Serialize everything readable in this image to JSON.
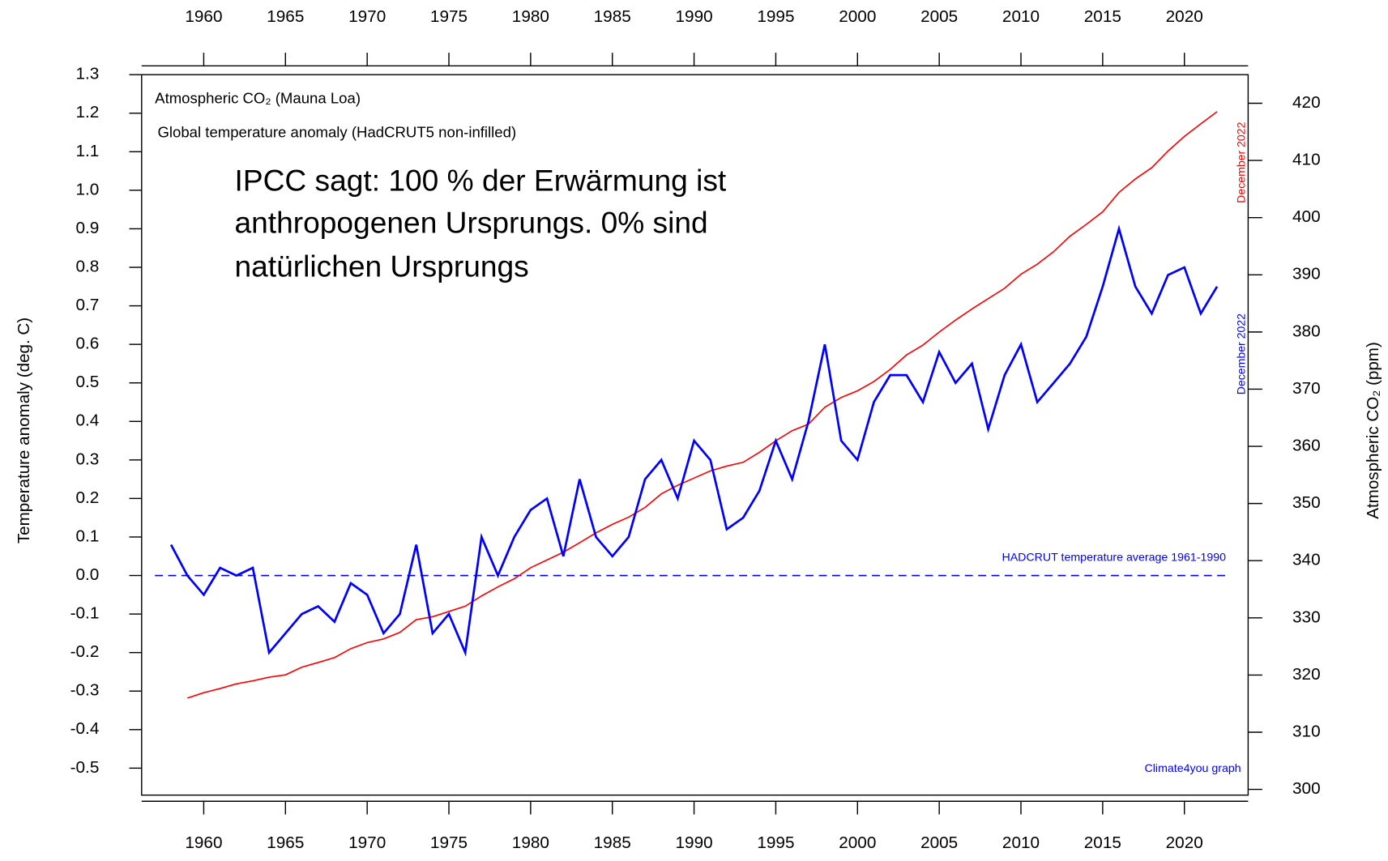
{
  "chart_data": {
    "type": "line",
    "legend": "upper left",
    "annotation": [
      "IPCC sagt: 100 % der Erwärmung ist",
      "anthropogenen Ursprungs. 0% sind",
      "natürlichen Ursprungs"
    ],
    "ylabel": "Temperature anomaly (deg. C)",
    "y2label": "Atmospheric CO₂ (ppm)",
    "credit": "Climate4you graph",
    "end_labels": [
      "December 2022",
      "December 2022"
    ],
    "baseline": {
      "value": 0,
      "label": "HADCRUT temperature average 1961-1990"
    },
    "xlim": [
      1956.2,
      2023.9
    ],
    "xticks": [
      1960,
      1965,
      1970,
      1975,
      1980,
      1985,
      1990,
      1995,
      2000,
      2005,
      2010,
      2015,
      2020
    ],
    "ylim": [
      -0.57,
      1.3
    ],
    "yticks": [
      -0.5,
      -0.4,
      -0.3,
      -0.2,
      -0.1,
      {
        "value": 0,
        "label": "0.0"
      },
      0.1,
      0.2,
      0.3,
      0.4,
      0.5,
      0.6,
      0.7,
      0.8,
      0.9,
      {
        "value": 1,
        "label": "1.0"
      },
      1.1,
      1.2,
      1.3
    ],
    "y2lim": [
      299,
      425
    ],
    "y2ticks": [
      300,
      310,
      320,
      330,
      340,
      350,
      360,
      370,
      380,
      390,
      400,
      410,
      420
    ],
    "series": [
      {
        "name": "Atmospheric CO₂ (Mauna Loa)",
        "color": "#ff0000",
        "axis": "y2",
        "x": [
          1959,
          1960,
          1961,
          1962,
          1963,
          1964,
          1965,
          1966,
          1967,
          1968,
          1969,
          1970,
          1971,
          1972,
          1973,
          1974,
          1975,
          1976,
          1977,
          1978,
          1979,
          1980,
          1981,
          1982,
          1983,
          1984,
          1985,
          1986,
          1987,
          1988,
          1989,
          1990,
          1991,
          1992,
          1993,
          1994,
          1995,
          1996,
          1997,
          1998,
          1999,
          2000,
          2001,
          2002,
          2003,
          2004,
          2005,
          2006,
          2007,
          2008,
          2009,
          2010,
          2011,
          2012,
          2013,
          2014,
          2015,
          2016,
          2017,
          2018,
          2019,
          2020,
          2021,
          2022
        ],
        "values": [
          315.97,
          316.91,
          317.64,
          318.45,
          318.99,
          319.62,
          320.04,
          321.37,
          322.18,
          323.05,
          324.62,
          325.68,
          326.32,
          327.46,
          329.68,
          330.19,
          331.12,
          332.03,
          333.84,
          335.41,
          336.84,
          338.76,
          340.12,
          341.48,
          343.15,
          344.87,
          346.35,
          347.61,
          349.31,
          351.69,
          353.2,
          354.45,
          355.7,
          356.54,
          357.21,
          358.96,
          360.97,
          362.74,
          363.88,
          366.84,
          368.54,
          369.71,
          371.32,
          373.45,
          375.98,
          377.7,
          379.98,
          382.09,
          384.02,
          385.83,
          387.64,
          390.1,
          391.85,
          394.06,
          396.74,
          398.81,
          401.01,
          404.41,
          406.76,
          408.72,
          411.65,
          414.21,
          416.41,
          418.53
        ]
      },
      {
        "name": "Global temperature anomaly (HadCRUT5 non-infilled)",
        "color": "#0000ff",
        "axis": "y",
        "x": [
          1958,
          1959,
          1960,
          1961,
          1962,
          1963,
          1964,
          1965,
          1966,
          1967,
          1968,
          1969,
          1970,
          1971,
          1972,
          1973,
          1974,
          1975,
          1976,
          1977,
          1978,
          1979,
          1980,
          1981,
          1982,
          1983,
          1984,
          1985,
          1986,
          1987,
          1988,
          1989,
          1990,
          1991,
          1992,
          1993,
          1994,
          1995,
          1996,
          1997,
          1998,
          1999,
          2000,
          2001,
          2002,
          2003,
          2004,
          2005,
          2006,
          2007,
          2008,
          2009,
          2010,
          2011,
          2012,
          2013,
          2014,
          2015,
          2016,
          2017,
          2018,
          2019,
          2020,
          2021,
          2022
        ],
        "values": [
          0.08,
          0.0,
          -0.05,
          0.02,
          0.0,
          0.02,
          -0.2,
          -0.15,
          -0.1,
          -0.08,
          -0.12,
          -0.02,
          -0.05,
          -0.15,
          -0.1,
          0.08,
          -0.15,
          -0.1,
          -0.2,
          0.1,
          0.0,
          0.1,
          0.17,
          0.2,
          0.05,
          0.25,
          0.1,
          0.05,
          0.1,
          0.25,
          0.3,
          0.2,
          0.35,
          0.3,
          0.12,
          0.15,
          0.22,
          0.35,
          0.25,
          0.4,
          0.6,
          0.35,
          0.3,
          0.45,
          0.52,
          0.52,
          0.45,
          0.58,
          0.5,
          0.55,
          0.38,
          0.52,
          0.6,
          0.45,
          0.5,
          0.55,
          0.62,
          0.75,
          0.9,
          0.75,
          0.68,
          0.78,
          0.8,
          0.68,
          0.75
        ]
      }
    ]
  }
}
